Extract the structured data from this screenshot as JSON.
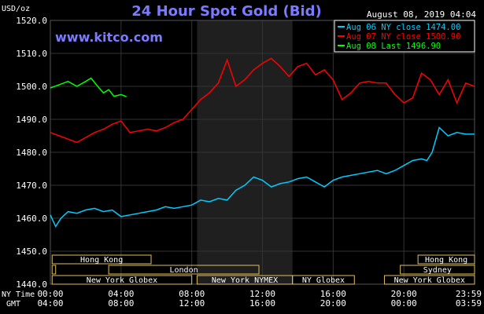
{
  "chart_data": {
    "type": "line",
    "title": "24 Hour Spot Gold (Bid)",
    "timestamp": "August 08, 2019 04:04",
    "website": "www.kitco.com",
    "ylabel": "USD/oz",
    "ylim": [
      1440,
      1520
    ],
    "y_ticks": [
      "1520.0",
      "1510.0",
      "1500.0",
      "1490.0",
      "1480.0",
      "1470.0",
      "1460.0",
      "1450.0",
      "1440.0"
    ],
    "x_ticks_ny": [
      "00:00",
      "04:00",
      "08:00",
      "12:00",
      "16:00",
      "20:00",
      "23:59"
    ],
    "x_ticks_gmt": [
      "04:00",
      "08:00",
      "12:00",
      "16:00",
      "20:00",
      "00:00",
      "03:59"
    ],
    "x_row_labels": [
      "NY Time",
      "GMT"
    ],
    "xlim": [
      0,
      24
    ],
    "grid": true,
    "legend_position": "top-right",
    "shaded_hours": [
      8.3,
      13.7
    ],
    "colors": {
      "aug06": "#00ccff",
      "aug07": "#ff0000",
      "aug08": "#00ff00",
      "title": "#7b7bff",
      "grid": "#333333",
      "text": "#ffffff",
      "market_box": "#e0c060",
      "shade": "#1f1f1f"
    },
    "series": [
      {
        "name": "Aug 06 NY close 1474.00",
        "color": "#00ccff",
        "x": [
          0,
          0.3,
          0.6,
          1,
          1.5,
          2,
          2.5,
          3,
          3.5,
          4,
          4.5,
          5,
          5.5,
          6,
          6.5,
          7,
          7.5,
          8,
          8.5,
          9,
          9.5,
          10,
          10.5,
          11,
          11.5,
          12,
          12.5,
          13,
          13.5,
          14,
          14.5,
          15,
          15.5,
          16,
          16.5,
          17,
          17.5,
          18,
          18.5,
          19,
          19.5,
          20,
          20.5,
          21,
          21.3,
          21.6,
          22,
          22.5,
          23,
          23.5,
          23.99
        ],
        "values": [
          1461.0,
          1457.5,
          1460.0,
          1462.0,
          1461.5,
          1462.5,
          1463.0,
          1462.0,
          1462.5,
          1460.5,
          1461.0,
          1461.5,
          1462.0,
          1462.5,
          1463.5,
          1463.0,
          1463.5,
          1464.0,
          1465.5,
          1465.0,
          1466.0,
          1465.5,
          1468.5,
          1470.0,
          1472.5,
          1471.5,
          1469.5,
          1470.5,
          1471.0,
          1472.0,
          1472.5,
          1471.0,
          1469.5,
          1471.5,
          1472.5,
          1473.0,
          1473.5,
          1474.0,
          1474.5,
          1473.5,
          1474.5,
          1476.0,
          1477.5,
          1478.0,
          1477.5,
          1480.0,
          1487.5,
          1485.0,
          1486.0,
          1485.5,
          1485.5
        ]
      },
      {
        "name": "Aug 07 NY close 1500.90",
        "color": "#ff0000",
        "x": [
          0,
          0.5,
          1,
          1.5,
          2,
          2.5,
          3,
          3.5,
          4,
          4.5,
          5,
          5.5,
          6,
          6.5,
          7,
          7.5,
          8,
          8.5,
          9,
          9.5,
          10,
          10.5,
          11,
          11.5,
          12,
          12.5,
          13,
          13.5,
          14,
          14.5,
          15,
          15.5,
          16,
          16.5,
          17,
          17.5,
          18,
          18.5,
          19,
          19.5,
          20,
          20.5,
          21,
          21.5,
          22,
          22.5,
          23,
          23.5,
          23.99
        ],
        "values": [
          1486.0,
          1485.0,
          1484.0,
          1483.0,
          1484.5,
          1486.0,
          1487.0,
          1488.5,
          1489.5,
          1486.0,
          1486.5,
          1487.0,
          1486.5,
          1487.5,
          1489.0,
          1490.0,
          1493.0,
          1496.0,
          1498.0,
          1501.0,
          1508.0,
          1500.0,
          1502.0,
          1505.0,
          1507.0,
          1508.5,
          1506.0,
          1503.0,
          1506.0,
          1507.0,
          1503.5,
          1505.0,
          1502.0,
          1496.0,
          1498.0,
          1501.0,
          1501.5,
          1501.0,
          1501.0,
          1497.5,
          1495.0,
          1496.5,
          1504.0,
          1502.0,
          1497.5,
          1502.0,
          1495.0,
          1501.0,
          1500.0
        ]
      },
      {
        "name": "Aug 08 Last 1496.90",
        "color": "#00ff00",
        "x": [
          0,
          0.5,
          1,
          1.5,
          2,
          2.3,
          2.6,
          3,
          3.3,
          3.6,
          4,
          4.3
        ],
        "values": [
          1499.5,
          1500.5,
          1501.5,
          1500.0,
          1501.5,
          1502.5,
          1500.5,
          1498.0,
          1499.0,
          1497.0,
          1497.5,
          1496.9
        ]
      }
    ],
    "market_rows": [
      {
        "blocks": [
          {
            "label": "Hong Kong",
            "start": 0.1,
            "end": 5.7
          },
          {
            "label": "Hong Kong",
            "start": 20.8,
            "end": 24
          }
        ]
      },
      {
        "blocks": [
          {
            "label": "",
            "start": 0.1,
            "end": 0.3
          },
          {
            "label": "London",
            "start": 3.3,
            "end": 11.8
          },
          {
            "label": "Sydney",
            "start": 19.8,
            "end": 24
          }
        ]
      },
      {
        "blocks": [
          {
            "label": "New York Globex",
            "start": 0.1,
            "end": 8.0
          },
          {
            "label": "New York NYMEX",
            "start": 8.3,
            "end": 13.7
          },
          {
            "label": "NY Globex",
            "start": 13.7,
            "end": 17.2
          },
          {
            "label": "New York Globex",
            "start": 18.9,
            "end": 24
          }
        ]
      }
    ]
  }
}
